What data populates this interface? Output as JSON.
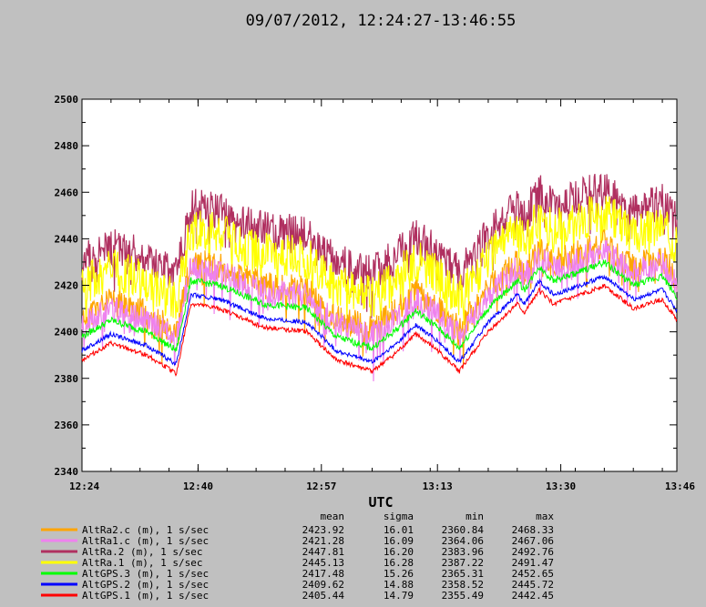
{
  "chart_data": {
    "type": "line",
    "title": "09/07/2012, 12:24:27-13:46:55",
    "xlabel": "UTC",
    "ylabel": "",
    "x_ticks": [
      "12:24",
      "12:40",
      "12:57",
      "13:13",
      "13:30",
      "13:46"
    ],
    "y_ticks": [
      2340,
      2360,
      2380,
      2400,
      2420,
      2440,
      2460,
      2480,
      2500
    ],
    "ylim": [
      2340,
      2500
    ],
    "xlim": [
      "12:24",
      "13:46"
    ],
    "grid": false,
    "background": "#ffffff",
    "stats_columns": [
      "mean",
      "sigma",
      "min",
      "max"
    ],
    "anchors_x_min": [
      0,
      4,
      9,
      13,
      15,
      19,
      25,
      31,
      35,
      40,
      43,
      46,
      49,
      52,
      56,
      60,
      61,
      63,
      65,
      68,
      72,
      76,
      80,
      82
    ],
    "series": [
      {
        "name": "AltRa2.c (m), 1 s/sec",
        "color": "#ffa500",
        "mean": "2423.92",
        "sigma": "16.01",
        "min": "2360.84",
        "max": "2468.33",
        "base_offset": 18,
        "noise": 6
      },
      {
        "name": "AltRa1.c (m), 1 s/sec",
        "color": "#ee82ee",
        "mean": "2421.28",
        "sigma": "16.09",
        "min": "2364.06",
        "max": "2467.06",
        "base_offset": 15,
        "noise": 6
      },
      {
        "name": "AltRa.2 (m), 1 s/sec",
        "color": "#b03060",
        "mean": "2447.81",
        "sigma": "16.20",
        "min": "2383.96",
        "max": "2492.76",
        "base_offset": 42,
        "noise": 8
      },
      {
        "name": "AltRa.1 (m), 1 s/sec",
        "color": "#ffff00",
        "mean": "2445.13",
        "sigma": "16.28",
        "min": "2387.22",
        "max": "2491.47",
        "base_offset": 32,
        "noise": 9
      },
      {
        "name": "AltGPS.3 (m), 1 s/sec",
        "color": "#00ff00",
        "mean": "2417.48",
        "sigma": "15.26",
        "min": "2365.31",
        "max": "2452.65",
        "base_offset": 10,
        "noise": 1.5
      },
      {
        "name": "AltGPS.2 (m), 1 s/sec",
        "color": "#0000ff",
        "mean": "2409.62",
        "sigma": "14.88",
        "min": "2358.52",
        "max": "2445.72",
        "base_offset": 4,
        "noise": 1
      },
      {
        "name": "AltGPS.1 (m), 1 s/sec",
        "color": "#ff0000",
        "mean": "2405.44",
        "sigma": "14.79",
        "min": "2355.49",
        "max": "2442.45",
        "base_offset": 0,
        "noise": 1
      }
    ],
    "base_profile": [
      2388,
      2395,
      2390,
      2382,
      2412,
      2410,
      2402,
      2400,
      2388,
      2383,
      2390,
      2399,
      2392,
      2383,
      2400,
      2412,
      2408,
      2418,
      2412,
      2415,
      2420,
      2410,
      2414,
      2405
    ]
  }
}
